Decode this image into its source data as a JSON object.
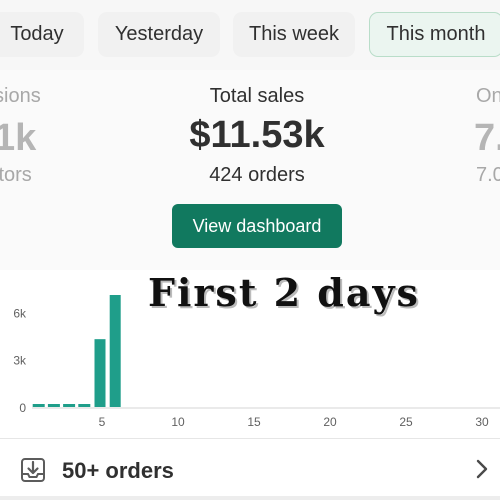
{
  "tabs": [
    {
      "label": "Today"
    },
    {
      "label": "Yesterday"
    },
    {
      "label": "This week"
    },
    {
      "label": "This month",
      "active": true
    }
  ],
  "stats": {
    "sessions": {
      "label": "sions",
      "value": "1k",
      "sub": "itors"
    },
    "total_sales": {
      "label": "Total sales",
      "value": "$11.53k",
      "sub": "424 orders"
    },
    "other": {
      "label": "On",
      "value": "7.",
      "sub": "7.0"
    }
  },
  "dashboard_button": {
    "label": "View dashboard"
  },
  "overlay_text": "First 2 days",
  "chart_data": {
    "type": "bar",
    "x": [
      1,
      2,
      3,
      4,
      5,
      6
    ],
    "values": [
      0,
      0,
      0,
      0,
      4300,
      7100
    ],
    "x_ticks": [
      "5",
      "10",
      "15",
      "20",
      "25",
      "30"
    ],
    "y_ticks": [
      "0",
      "3k",
      "6k"
    ],
    "xlim": [
      0,
      31
    ],
    "ylim": [
      0,
      7100
    ],
    "bar_color": "#1f9e8a",
    "grid": false
  },
  "footer": {
    "label": "50+ orders",
    "icon": "download-tray-icon",
    "chevron": "chevron-right-icon"
  }
}
